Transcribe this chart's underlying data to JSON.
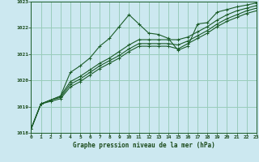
{
  "bg_color": "#cce8f0",
  "grid_color": "#99ccbb",
  "line_color": "#1a5c28",
  "text_color": "#1a4a1a",
  "xlabel": "Graphe pression niveau de la mer (hPa)",
  "xlim": [
    0,
    23
  ],
  "ylim": [
    1018,
    1023
  ],
  "yticks": [
    1018,
    1019,
    1020,
    1021,
    1022,
    1023
  ],
  "xticks": [
    0,
    1,
    2,
    3,
    4,
    5,
    6,
    7,
    8,
    9,
    10,
    11,
    12,
    13,
    14,
    15,
    16,
    17,
    18,
    19,
    20,
    21,
    22,
    23
  ],
  "series": [
    [
      1018.15,
      1019.1,
      1019.25,
      1019.4,
      1020.3,
      1020.55,
      1020.85,
      1021.3,
      1021.6,
      1022.05,
      1022.5,
      1022.15,
      1021.8,
      1021.75,
      1021.6,
      1021.15,
      1021.3,
      1022.15,
      1022.2,
      1022.6,
      1022.7,
      1022.8,
      1022.87,
      1022.95
    ],
    [
      1018.15,
      1019.1,
      1019.25,
      1019.4,
      1019.95,
      1020.15,
      1020.4,
      1020.65,
      1020.85,
      1021.1,
      1021.35,
      1021.55,
      1021.55,
      1021.55,
      1021.55,
      1021.55,
      1021.65,
      1021.85,
      1022.05,
      1022.3,
      1022.5,
      1022.65,
      1022.75,
      1022.85
    ],
    [
      1018.15,
      1019.1,
      1019.25,
      1019.35,
      1019.85,
      1020.05,
      1020.3,
      1020.55,
      1020.75,
      1020.95,
      1021.2,
      1021.4,
      1021.4,
      1021.4,
      1021.4,
      1021.35,
      1021.5,
      1021.7,
      1021.9,
      1022.15,
      1022.35,
      1022.5,
      1022.65,
      1022.75
    ],
    [
      1018.15,
      1019.1,
      1019.2,
      1019.3,
      1019.75,
      1019.95,
      1020.2,
      1020.45,
      1020.65,
      1020.85,
      1021.1,
      1021.3,
      1021.3,
      1021.3,
      1021.3,
      1021.2,
      1021.4,
      1021.6,
      1021.8,
      1022.05,
      1022.25,
      1022.4,
      1022.55,
      1022.65
    ]
  ]
}
